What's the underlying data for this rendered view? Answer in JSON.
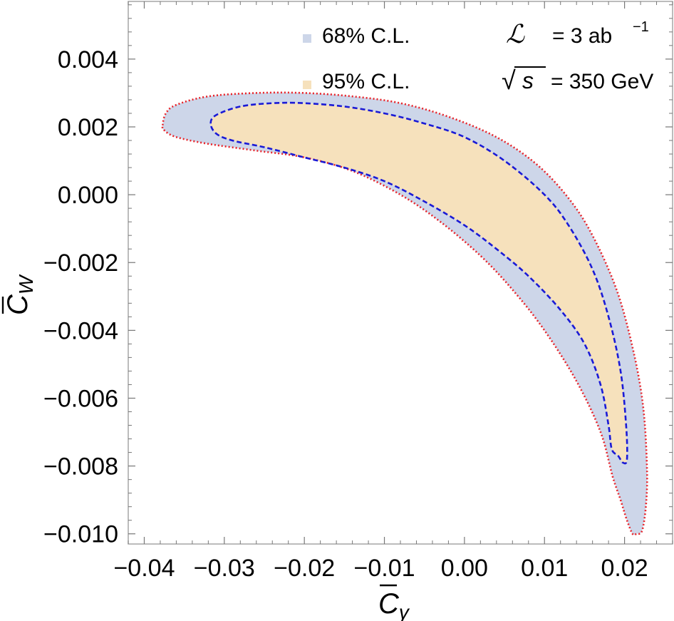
{
  "chart_data": {
    "type": "contour",
    "xlim": [
      -0.042,
      0.026
    ],
    "ylim": [
      -0.0103,
      0.0057
    ],
    "x_ticks": [
      -0.04,
      -0.03,
      -0.02,
      -0.01,
      0.0,
      0.01,
      0.02
    ],
    "x_tick_labels": [
      "−0.04",
      "−0.03",
      "−0.02",
      "−0.01",
      "0.00",
      "0.01",
      "0.02"
    ],
    "y_ticks": [
      0.004,
      0.002,
      0.0,
      -0.002,
      -0.004,
      -0.006,
      -0.008,
      -0.01
    ],
    "y_tick_labels": [
      "0.004",
      "0.002",
      "0.000",
      "−0.002",
      "−0.004",
      "−0.006",
      "−0.008",
      "−0.010"
    ],
    "xlabel": "C̅γ",
    "ylabel": "C̅W",
    "grid": false,
    "legend": {
      "placement": "top",
      "entries": [
        {
          "label": "68% C.L.",
          "color": "#cdd6e9"
        },
        {
          "label": "95% C.L.",
          "color": "#f6e1bc"
        }
      ]
    },
    "annotations": {
      "lumi_symbol": "ℒ",
      "lumi_text": "= 3 ab",
      "lumi_exp": "−1",
      "sqrt_symbol": "√",
      "sqrt_var": "s",
      "energy_text": "= 350 GeV"
    },
    "colors": {
      "outer_fill": "#cdd6e9",
      "inner_fill": "#f6e1bc",
      "outer_line": "#e8242a",
      "inner_line": "#1a1ad6",
      "frame": "#a0a0a0"
    },
    "series": [
      {
        "name": "outer-contour",
        "points": [
          [
            -0.0377,
            0.00205
          ],
          [
            -0.0373,
            0.0024
          ],
          [
            -0.036,
            0.00265
          ],
          [
            -0.032,
            0.0029
          ],
          [
            -0.026,
            0.003
          ],
          [
            -0.02,
            0.003
          ],
          [
            -0.014,
            0.0029
          ],
          [
            -0.008,
            0.0027
          ],
          [
            -0.002,
            0.0023
          ],
          [
            0.004,
            0.0017
          ],
          [
            0.009,
            0.0009
          ],
          [
            0.013,
            -0.0001
          ],
          [
            0.016,
            -0.0012
          ],
          [
            0.019,
            -0.0028
          ],
          [
            0.021,
            -0.0045
          ],
          [
            0.0223,
            -0.0062
          ],
          [
            0.0228,
            -0.008
          ],
          [
            0.0227,
            -0.0091
          ],
          [
            0.0222,
            -0.0099
          ],
          [
            0.0215,
            -0.01
          ],
          [
            0.021,
            -0.01
          ],
          [
            0.0203,
            -0.0096
          ],
          [
            0.0195,
            -0.009
          ],
          [
            0.0185,
            -0.0083
          ],
          [
            0.017,
            -0.007
          ],
          [
            0.014,
            -0.0055
          ],
          [
            0.01,
            -0.004
          ],
          [
            0.006,
            -0.0028
          ],
          [
            0.002,
            -0.0018
          ],
          [
            -0.003,
            -0.0008
          ],
          [
            -0.008,
            0.0
          ],
          [
            -0.014,
            0.0007
          ],
          [
            -0.02,
            0.0011
          ],
          [
            -0.026,
            0.0013
          ],
          [
            -0.032,
            0.0015
          ],
          [
            -0.036,
            0.0017
          ],
          [
            -0.0375,
            0.0019
          ]
        ]
      },
      {
        "name": "inner-contour",
        "points": [
          [
            -0.0317,
            0.0021
          ],
          [
            -0.031,
            0.00235
          ],
          [
            -0.028,
            0.0026
          ],
          [
            -0.024,
            0.0027
          ],
          [
            -0.02,
            0.0027
          ],
          [
            -0.015,
            0.0026
          ],
          [
            -0.01,
            0.0024
          ],
          [
            -0.005,
            0.0021
          ],
          [
            0.0,
            0.0017
          ],
          [
            0.005,
            0.001
          ],
          [
            0.01,
            0.0
          ],
          [
            0.013,
            -0.0009
          ],
          [
            0.016,
            -0.0022
          ],
          [
            0.018,
            -0.0036
          ],
          [
            0.0195,
            -0.0052
          ],
          [
            0.0202,
            -0.0068
          ],
          [
            0.0203,
            -0.0078
          ],
          [
            0.0198,
            -0.0079
          ],
          [
            0.0192,
            -0.0077
          ],
          [
            0.0184,
            -0.0075
          ],
          [
            0.018,
            -0.0068
          ],
          [
            0.017,
            -0.0056
          ],
          [
            0.015,
            -0.0044
          ],
          [
            0.012,
            -0.0034
          ],
          [
            0.008,
            -0.0024
          ],
          [
            0.004,
            -0.0016
          ],
          [
            0.0,
            -0.0009
          ],
          [
            -0.005,
            -0.0002
          ],
          [
            -0.01,
            0.0004
          ],
          [
            -0.015,
            0.0008
          ],
          [
            -0.02,
            0.0011
          ],
          [
            -0.025,
            0.0014
          ],
          [
            -0.029,
            0.0016
          ],
          [
            -0.031,
            0.0018
          ]
        ]
      }
    ]
  }
}
